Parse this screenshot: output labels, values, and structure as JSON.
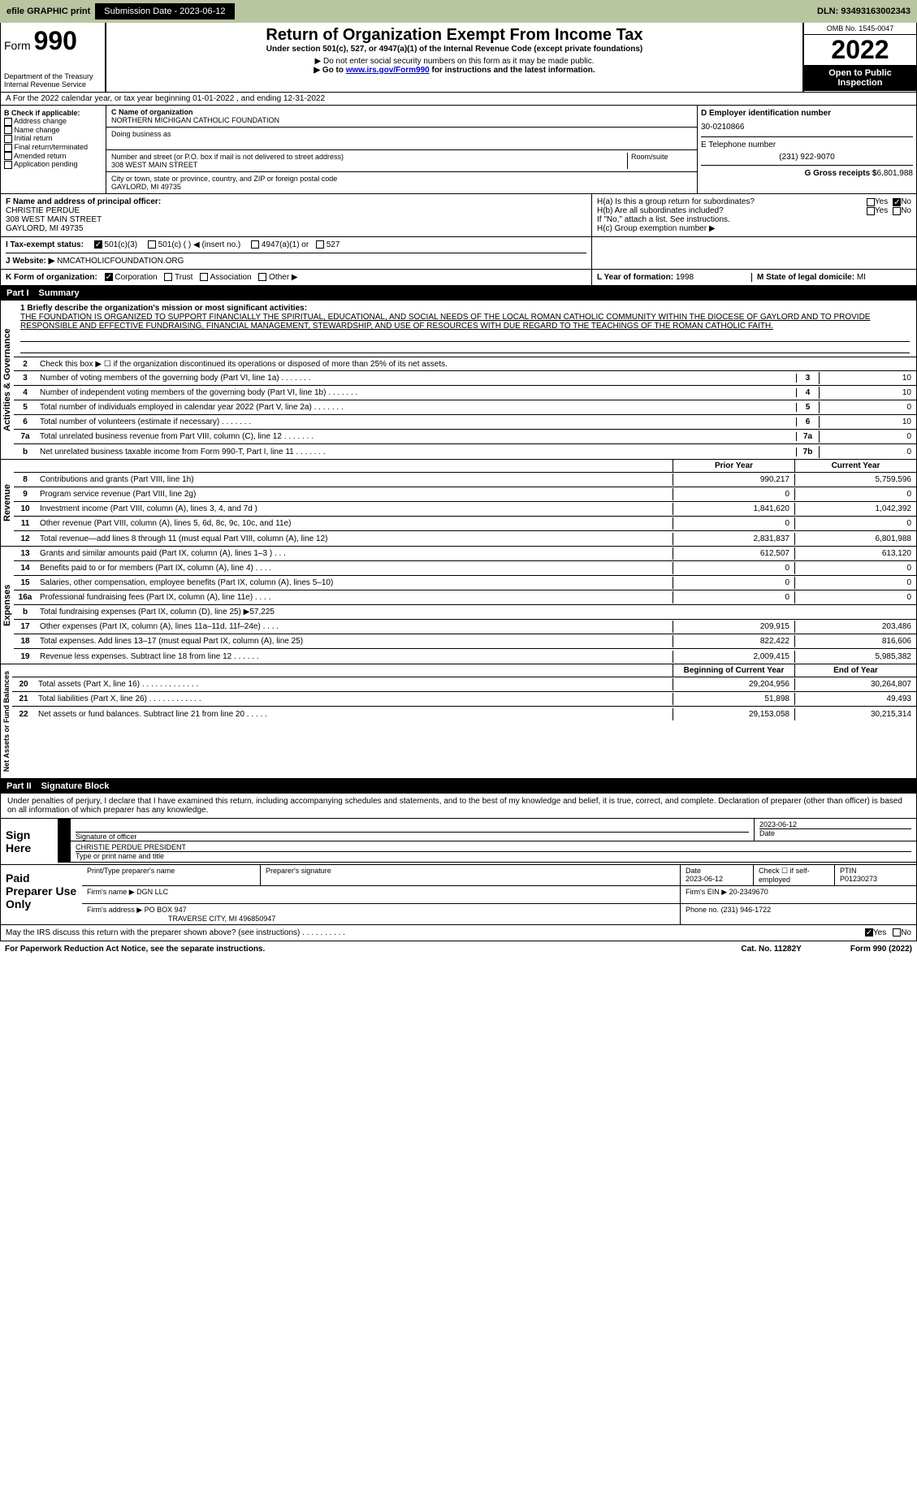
{
  "topbar": {
    "efile": "efile GRAPHIC print",
    "submission": "Submission Date - 2023-06-12",
    "dln": "DLN: 93493163002343"
  },
  "header": {
    "form_label": "Form",
    "form_num": "990",
    "dept1": "Department of the Treasury",
    "dept2": "Internal Revenue Service",
    "title": "Return of Organization Exempt From Income Tax",
    "sub1": "Under section 501(c), 527, or 4947(a)(1) of the Internal Revenue Code (except private foundations)",
    "sub2": "▶ Do not enter social security numbers on this form as it may be made public.",
    "sub3_pre": "▶ Go to ",
    "sub3_link": "www.irs.gov/Form990",
    "sub3_post": " for instructions and the latest information.",
    "omb": "OMB No. 1545-0047",
    "year": "2022",
    "open": "Open to Public Inspection"
  },
  "row_a": "A For the 2022 calendar year, or tax year beginning 01-01-2022    , and ending 12-31-2022",
  "col_b": {
    "hdr": "B Check if applicable:",
    "items": [
      "Address change",
      "Name change",
      "Initial return",
      "Final return/terminated",
      "Amended return",
      "Application pending"
    ]
  },
  "col_c": {
    "name_lbl": "C Name of organization",
    "name": "NORTHERN MICHIGAN CATHOLIC FOUNDATION",
    "dba_lbl": "Doing business as",
    "addr_lbl": "Number and street (or P.O. box if mail is not delivered to street address)",
    "addr": "308 WEST MAIN STREET",
    "room_lbl": "Room/suite",
    "city_lbl": "City or town, state or province, country, and ZIP or foreign postal code",
    "city": "GAYLORD, MI  49735"
  },
  "col_d": {
    "d_lbl": "D Employer identification number",
    "d_val": "30-0210866",
    "e_lbl": "E Telephone number",
    "e_val": "(231) 922-9070",
    "g_lbl": "G Gross receipts $",
    "g_val": "6,801,988"
  },
  "section_f": {
    "f_lbl": "F Name and address of principal officer:",
    "f_name": "CHRISTIE PERDUE",
    "f_addr1": "308 WEST MAIN STREET",
    "f_addr2": "GAYLORD, MI  49735",
    "ha": "H(a)  Is this a group return for subordinates?",
    "hb": "H(b)  Are all subordinates included?",
    "hb_note": "If \"No,\" attach a list. See instructions.",
    "hc": "H(c)  Group exemption number ▶",
    "yes": "Yes",
    "no": "No"
  },
  "row_i": {
    "i_lbl": "I   Tax-exempt status:",
    "opt1": "501(c)(3)",
    "opt2": "501(c) (  ) ◀ (insert no.)",
    "opt3": "4947(a)(1) or",
    "opt4": "527"
  },
  "row_j": {
    "j_lbl": "J   Website: ▶",
    "j_val": "NMCATHOLICFOUNDATION.ORG"
  },
  "row_k": {
    "k_lbl": "K Form of organization:",
    "opts": [
      "Corporation",
      "Trust",
      "Association",
      "Other ▶"
    ],
    "l_lbl": "L Year of formation:",
    "l_val": "1998",
    "m_lbl": "M State of legal domicile:",
    "m_val": "MI"
  },
  "part1": {
    "hdr": "Part I",
    "title": "Summary",
    "vert1": "Activities & Governance",
    "line1_lbl": "1 Briefly describe the organization's mission or most significant activities:",
    "mission": "THE FOUNDATION IS ORGANIZED TO SUPPORT FINANCIALLY THE SPIRITUAL, EDUCATIONAL, AND SOCIAL NEEDS OF THE LOCAL ROMAN CATHOLIC COMMUNITY WITHIN THE DIOCESE OF GAYLORD AND TO PROVIDE RESPONSIBLE AND EFFECTIVE FUNDRAISING, FINANCIAL MANAGEMENT, STEWARDSHIP, AND USE OF RESOURCES WITH DUE REGARD TO THE TEACHINGS OF THE ROMAN CATHOLIC FAITH.",
    "line2": "Check this box ▶ ☐ if the organization discontinued its operations or disposed of more than 25% of its net assets.",
    "lines_gov": [
      {
        "n": "3",
        "t": "Number of voting members of the governing body (Part VI, line 1a)",
        "b": "3",
        "v": "10"
      },
      {
        "n": "4",
        "t": "Number of independent voting members of the governing body (Part VI, line 1b)",
        "b": "4",
        "v": "10"
      },
      {
        "n": "5",
        "t": "Total number of individuals employed in calendar year 2022 (Part V, line 2a)",
        "b": "5",
        "v": "0"
      },
      {
        "n": "6",
        "t": "Total number of volunteers (estimate if necessary)",
        "b": "6",
        "v": "10"
      },
      {
        "n": "7a",
        "t": "Total unrelated business revenue from Part VIII, column (C), line 12",
        "b": "7a",
        "v": "0"
      },
      {
        "n": "b",
        "t": "Net unrelated business taxable income from Form 990-T, Part I, line 11",
        "b": "7b",
        "v": "0"
      }
    ],
    "vert2": "Revenue",
    "prior_hdr": "Prior Year",
    "current_hdr": "Current Year",
    "lines_rev": [
      {
        "n": "8",
        "t": "Contributions and grants (Part VIII, line 1h)",
        "p": "990,217",
        "c": "5,759,596"
      },
      {
        "n": "9",
        "t": "Program service revenue (Part VIII, line 2g)",
        "p": "0",
        "c": "0"
      },
      {
        "n": "10",
        "t": "Investment income (Part VIII, column (A), lines 3, 4, and 7d )",
        "p": "1,841,620",
        "c": "1,042,392"
      },
      {
        "n": "11",
        "t": "Other revenue (Part VIII, column (A), lines 5, 6d, 8c, 9c, 10c, and 11e)",
        "p": "0",
        "c": "0"
      },
      {
        "n": "12",
        "t": "Total revenue—add lines 8 through 11 (must equal Part VIII, column (A), line 12)",
        "p": "2,831,837",
        "c": "6,801,988"
      }
    ],
    "vert3": "Expenses",
    "lines_exp": [
      {
        "n": "13",
        "t": "Grants and similar amounts paid (Part IX, column (A), lines 1–3 )  .  .  .",
        "p": "612,507",
        "c": "613,120"
      },
      {
        "n": "14",
        "t": "Benefits paid to or for members (Part IX, column (A), line 4)  .  .  .  .",
        "p": "0",
        "c": "0"
      },
      {
        "n": "15",
        "t": "Salaries, other compensation, employee benefits (Part IX, column (A), lines 5–10)",
        "p": "0",
        "c": "0"
      },
      {
        "n": "16a",
        "t": "Professional fundraising fees (Part IX, column (A), line 11e)  .  .  .  .",
        "p": "0",
        "c": "0"
      },
      {
        "n": "b",
        "t": "Total fundraising expenses (Part IX, column (D), line 25) ▶57,225",
        "p": "",
        "c": ""
      },
      {
        "n": "17",
        "t": "Other expenses (Part IX, column (A), lines 11a–11d, 11f–24e)  .  .  .  .",
        "p": "209,915",
        "c": "203,486"
      },
      {
        "n": "18",
        "t": "Total expenses. Add lines 13–17 (must equal Part IX, column (A), line 25)",
        "p": "822,422",
        "c": "816,606"
      },
      {
        "n": "19",
        "t": "Revenue less expenses. Subtract line 18 from line 12  .  .  .  .  .  .",
        "p": "2,009,415",
        "c": "5,985,382"
      }
    ],
    "vert4": "Net Assets or Fund Balances",
    "begin_hdr": "Beginning of Current Year",
    "end_hdr": "End of Year",
    "lines_net": [
      {
        "n": "20",
        "t": "Total assets (Part X, line 16)  .  .  .  .  .  .  .  .  .  .  .  .  .",
        "p": "29,204,956",
        "c": "30,264,807"
      },
      {
        "n": "21",
        "t": "Total liabilities (Part X, line 26)  .  .  .  .  .  .  .  .  .  .  .  .",
        "p": "51,898",
        "c": "49,493"
      },
      {
        "n": "22",
        "t": "Net assets or fund balances. Subtract line 21 from line 20  .  .  .  .  .",
        "p": "29,153,058",
        "c": "30,215,314"
      }
    ]
  },
  "part2": {
    "hdr": "Part II",
    "title": "Signature Block",
    "intro": "Under penalties of perjury, I declare that I have examined this return, including accompanying schedules and statements, and to the best of my knowledge and belief, it is true, correct, and complete. Declaration of preparer (other than officer) is based on all information of which preparer has any knowledge.",
    "sign_lbl": "Sign Here",
    "sig_officer": "Signature of officer",
    "sig_date": "2023-06-12",
    "date_lbl": "Date",
    "sig_name": "CHRISTIE PERDUE  PRESIDENT",
    "sig_name_lbl": "Type or print name and title",
    "prep_lbl": "Paid Preparer Use Only",
    "prep_name_lbl": "Print/Type preparer's name",
    "prep_sig_lbl": "Preparer's signature",
    "prep_date_lbl": "Date",
    "prep_date": "2023-06-12",
    "prep_check_lbl": "Check ☐ if self-employed",
    "ptin_lbl": "PTIN",
    "ptin": "P01230273",
    "firm_name_lbl": "Firm's name    ▶",
    "firm_name": "DGN LLC",
    "firm_ein_lbl": "Firm's EIN ▶",
    "firm_ein": "20-2349670",
    "firm_addr_lbl": "Firm's address ▶",
    "firm_addr1": "PO BOX 947",
    "firm_addr2": "TRAVERSE CITY, MI  496850947",
    "phone_lbl": "Phone no.",
    "phone": "(231) 946-1722"
  },
  "footer": {
    "discuss": "May the IRS discuss this return with the preparer shown above? (see instructions)  .  .  .  .  .  .  .  .  .  .",
    "yes": "Yes",
    "no": "No",
    "notice": "For Paperwork Reduction Act Notice, see the separate instructions.",
    "cat": "Cat. No. 11282Y",
    "form": "Form 990 (2022)"
  }
}
